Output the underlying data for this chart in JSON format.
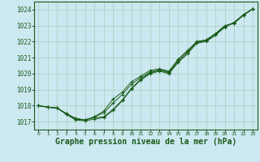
{
  "background_color": "#cce8f0",
  "grid_color": "#aaccbb",
  "line_color": "#1a5c1a",
  "marker_color": "#1a5c1a",
  "xlabel": "Graphe pression niveau de la mer (hPa)",
  "xlabel_fontsize": 7,
  "xlim": [
    -0.5,
    23.5
  ],
  "ylim": [
    1016.5,
    1024.5
  ],
  "yticks": [
    1017,
    1018,
    1019,
    1020,
    1021,
    1022,
    1023,
    1024
  ],
  "xticks": [
    0,
    1,
    2,
    3,
    4,
    5,
    6,
    7,
    8,
    9,
    10,
    11,
    12,
    13,
    14,
    15,
    16,
    17,
    18,
    19,
    20,
    21,
    22,
    23
  ],
  "series": [
    [
      1018.0,
      1017.9,
      1017.85,
      1017.5,
      1017.15,
      1017.1,
      1017.3,
      1017.65,
      1018.4,
      1018.85,
      1019.5,
      1019.85,
      1020.2,
      1020.3,
      1020.15,
      1020.9,
      1021.45,
      1022.0,
      1022.1,
      1022.5,
      1023.0,
      1023.15,
      1023.65,
      1024.05
    ],
    [
      1018.0,
      1017.9,
      1017.85,
      1017.45,
      1017.2,
      1017.1,
      1017.3,
      1017.55,
      1018.15,
      1018.7,
      1019.35,
      1019.75,
      1020.1,
      1020.25,
      1020.1,
      1020.85,
      1021.4,
      1022.0,
      1022.1,
      1022.5,
      1022.95,
      1023.15,
      1023.65,
      1024.05
    ],
    [
      1018.0,
      1017.9,
      1017.85,
      1017.5,
      1017.2,
      1017.1,
      1017.25,
      1017.3,
      1017.75,
      1018.35,
      1019.1,
      1019.65,
      1020.05,
      1020.2,
      1020.05,
      1020.75,
      1021.3,
      1021.95,
      1022.05,
      1022.45,
      1022.95,
      1023.2,
      1023.7,
      1024.05
    ],
    [
      1018.0,
      1017.9,
      1017.85,
      1017.45,
      1017.1,
      1017.05,
      1017.15,
      1017.25,
      1017.7,
      1018.3,
      1019.05,
      1019.6,
      1020.0,
      1020.15,
      1020.0,
      1020.7,
      1021.25,
      1021.9,
      1022.0,
      1022.4,
      1022.9,
      1023.2,
      1023.65,
      1024.05
    ]
  ]
}
